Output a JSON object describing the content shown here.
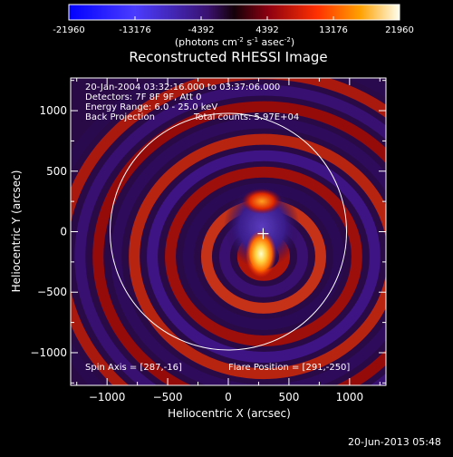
{
  "colorbar": {
    "ticks": [
      "-21960",
      "-13176",
      "-4392",
      "4392",
      "13176",
      "21960"
    ],
    "unit_parts": [
      "(photons cm",
      "-2",
      " s",
      "-1",
      " asec",
      "-2",
      ")"
    ]
  },
  "chart_data": {
    "type": "heatmap",
    "title": "Reconstructed RHESSI Image",
    "xlabel": "Heliocentric X (arcsec)",
    "ylabel": "Heliocentric Y (arcsec)",
    "xlim": [
      -1300,
      1300
    ],
    "ylim": [
      -1270,
      1270
    ],
    "xticks": [
      -1000,
      -500,
      0,
      500,
      1000
    ],
    "yticks": [
      -1000,
      -500,
      0,
      500,
      1000
    ],
    "xtick_labels": [
      "−1000",
      "−500",
      "0",
      "500",
      "1000"
    ],
    "ytick_labels": [
      "−1000",
      "−500",
      "0",
      "500",
      "1000"
    ],
    "color_range": [
      -21960,
      21960
    ],
    "solar_limb_radius_arcsec": 975,
    "spin_axis": [
      287,
      -16
    ],
    "flare_position": [
      291,
      -250
    ],
    "annotations": {
      "time": "20-Jan-2004 03:32:16.000 to 03:37:06.000",
      "detectors": "Detectors: 7F 8F 9F, Att 0",
      "energy": "Energy Range: 6.0 - 25.0 keV",
      "method": "Back Projection",
      "counts": "Total counts: 5.97E+04",
      "spin_axis": "Spin Axis = [287,-16]",
      "flare_position": "Flare Position = [291,-250]"
    },
    "grid": false
  },
  "footer": {
    "timestamp": "20-Jun-2013 05:48"
  }
}
